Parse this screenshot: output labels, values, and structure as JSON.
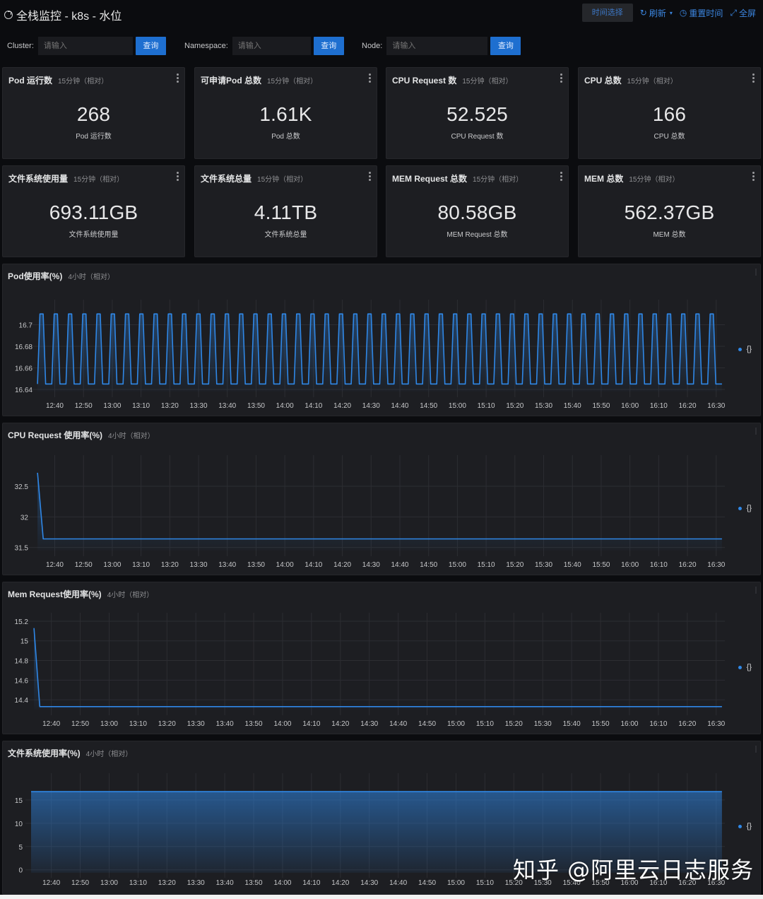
{
  "header": {
    "title": "全栈监控 - k8s - 水位",
    "time_select_label": "时间选择",
    "refresh_label": "刷新",
    "reset_time_label": "重置时间",
    "fullscreen_label": "全屏"
  },
  "filters": [
    {
      "label": "Cluster:",
      "placeholder": "请输入",
      "button": "查询"
    },
    {
      "label": "Namespace:",
      "placeholder": "请输入",
      "button": "查询"
    },
    {
      "label": "Node:",
      "placeholder": "请输入",
      "button": "查询"
    }
  ],
  "stats": [
    {
      "title": "Pod 运行数",
      "range": "15分钟（相对）",
      "value": "268",
      "label": "Pod 运行数"
    },
    {
      "title": "可申请Pod 总数",
      "range": "15分钟（相对）",
      "value": "1.61K",
      "label": "Pod 总数"
    },
    {
      "title": "CPU Request 数",
      "range": "15分钟（相对）",
      "value": "52.525",
      "label": "CPU Request 数"
    },
    {
      "title": "CPU 总数",
      "range": "15分钟（相对）",
      "value": "166",
      "label": "CPU 总数"
    },
    {
      "title": "文件系统使用量",
      "range": "15分钟（相对）",
      "value": "693.11GB",
      "label": "文件系统使用量"
    },
    {
      "title": "文件系统总量",
      "range": "15分钟（相对）",
      "value": "4.11TB",
      "label": "文件系统总量"
    },
    {
      "title": "MEM Request 总数",
      "range": "15分钟（相对）",
      "value": "80.58GB",
      "label": "MEM Request 总数"
    },
    {
      "title": "MEM 总数",
      "range": "15分钟（相对）",
      "value": "562.37GB",
      "label": "MEM 总数"
    }
  ],
  "colors": {
    "series": "#2f87e6",
    "accent": "#1e6fd0",
    "panel_bg": "#1d1e22",
    "page_bg": "#0b0c0f"
  },
  "chart_data": [
    {
      "type": "line",
      "title": "Pod使用率(%)",
      "range": "4小时（相对）",
      "x_ticks": [
        "12:40",
        "12:50",
        "13:00",
        "13:10",
        "13:20",
        "13:30",
        "13:40",
        "13:50",
        "14:00",
        "14:10",
        "14:20",
        "14:30",
        "14:40",
        "14:50",
        "15:00",
        "15:10",
        "15:20",
        "15:30",
        "15:40",
        "15:50",
        "16:00",
        "16:10",
        "16:20",
        "16:30"
      ],
      "y_ticks": [
        "16.64",
        "16.66",
        "16.68",
        "16.7"
      ],
      "ylim": [
        16.638,
        16.72
      ],
      "x_range": [
        "12:33",
        "16:33"
      ],
      "legend": [
        "{}"
      ],
      "legend_position": "right",
      "grid": true,
      "series": [
        {
          "name": "{}",
          "pattern": "square-wave",
          "low": 16.645,
          "high": 16.71,
          "cycles": 48
        }
      ]
    },
    {
      "type": "line",
      "title": "CPU Request 使用率(%)",
      "range": "4小时（相对）",
      "x_ticks": [
        "12:40",
        "12:50",
        "13:00",
        "13:10",
        "13:20",
        "13:30",
        "13:40",
        "13:50",
        "14:00",
        "14:10",
        "14:20",
        "14:30",
        "14:40",
        "14:50",
        "15:00",
        "15:10",
        "15:20",
        "15:30",
        "15:40",
        "15:50",
        "16:00",
        "16:10",
        "16:20",
        "16:30"
      ],
      "y_ticks": [
        "31.5",
        "32",
        "32.5"
      ],
      "ylim": [
        31.45,
        32.95
      ],
      "x_range": [
        "12:33",
        "16:33"
      ],
      "legend": [
        "{}"
      ],
      "legend_position": "right",
      "grid": true,
      "series": [
        {
          "name": "{}",
          "x": [
            "12:34",
            "12:36",
            "16:32"
          ],
          "values": [
            32.72,
            31.64,
            31.64
          ]
        }
      ]
    },
    {
      "type": "line",
      "title": "Mem Request使用率(%)",
      "range": "4小时（相对）",
      "x_ticks": [
        "12:40",
        "12:50",
        "13:00",
        "13:10",
        "13:20",
        "13:30",
        "13:40",
        "13:50",
        "14:00",
        "14:10",
        "14:20",
        "14:30",
        "14:40",
        "14:50",
        "15:00",
        "15:10",
        "15:20",
        "15:30",
        "15:40",
        "15:50",
        "16:00",
        "16:10",
        "16:20",
        "16:30"
      ],
      "y_ticks": [
        "14.4",
        "14.6",
        "14.8",
        "15",
        "15.2"
      ],
      "ylim": [
        14.3,
        15.25
      ],
      "x_range": [
        "12:33",
        "16:33"
      ],
      "legend": [
        "{}"
      ],
      "legend_position": "right",
      "grid": true,
      "series": [
        {
          "name": "{}",
          "x": [
            "12:34",
            "12:36",
            "16:32"
          ],
          "values": [
            15.13,
            14.33,
            14.33
          ]
        }
      ]
    },
    {
      "type": "area",
      "title": "文件系统使用率(%)",
      "range": "4小时（相对）",
      "x_ticks": [
        "12:40",
        "12:50",
        "13:00",
        "13:10",
        "13:20",
        "13:30",
        "13:40",
        "13:50",
        "14:00",
        "14:10",
        "14:20",
        "14:30",
        "14:40",
        "14:50",
        "15:00",
        "15:10",
        "15:20",
        "15:30",
        "15:40",
        "15:50",
        "16:00",
        "16:10",
        "16:20",
        "16:30"
      ],
      "y_ticks": [
        "0",
        "5",
        "10",
        "15"
      ],
      "ylim": [
        -0.5,
        20
      ],
      "x_range": [
        "12:33",
        "16:33"
      ],
      "legend": [
        "{}"
      ],
      "legend_position": "right",
      "grid": true,
      "series": [
        {
          "name": "{}",
          "x": [
            "12:33",
            "16:32"
          ],
          "values": [
            16.8,
            16.8
          ]
        }
      ]
    }
  ],
  "watermark": "知乎 @阿里云日志服务"
}
